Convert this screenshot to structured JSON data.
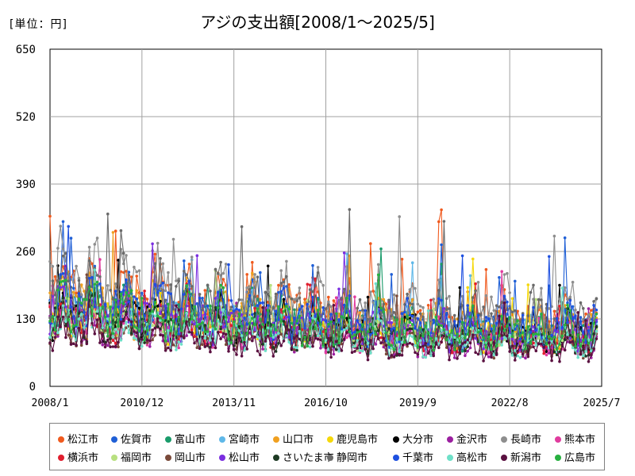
{
  "chart_data": {
    "type": "line",
    "title": "アジの支出額[2008/1～2025/5]",
    "unit_label": "[単位：円]",
    "xlabel": "",
    "ylabel": "",
    "x_range": [
      "2008/1",
      "2025/7"
    ],
    "x_ticks": [
      "2008/1",
      "2010/12",
      "2013/11",
      "2016/10",
      "2019/9",
      "2022/8",
      "2025/7"
    ],
    "ylim": [
      0,
      650
    ],
    "y_ticks": [
      0,
      130,
      260,
      390,
      520,
      650
    ],
    "grid": true,
    "legend_position": "bottom",
    "series": [
      {
        "name": "松江市",
        "color": "#f05a1e"
      },
      {
        "name": "佐賀市",
        "color": "#1f5fd6"
      },
      {
        "name": "富山市",
        "color": "#1a9b6b"
      },
      {
        "name": "宮崎市",
        "color": "#5fb8e8"
      },
      {
        "name": "山口市",
        "color": "#f0a020"
      },
      {
        "name": "鹿児島市",
        "color": "#f5d80a"
      },
      {
        "name": "大分市",
        "color": "#000000"
      },
      {
        "name": "金沢市",
        "color": "#9b1fa0"
      },
      {
        "name": "長崎市",
        "color": "#8e8e8e"
      },
      {
        "name": "熊本市",
        "color": "#e03c9e"
      },
      {
        "name": "横浜市",
        "color": "#e01e2e"
      },
      {
        "name": "福岡市",
        "color": "#b8e080"
      },
      {
        "name": "岡山市",
        "color": "#7a4a3a"
      },
      {
        "name": "松山市",
        "color": "#7a2ee0"
      },
      {
        "name": "さいたま市",
        "color": "#1e3a24"
      },
      {
        "name": "静岡市",
        "color": "#6a6a6a"
      },
      {
        "name": "千葉市",
        "color": "#1e50e0"
      },
      {
        "name": "高松市",
        "color": "#6ee0c8"
      },
      {
        "name": "新潟市",
        "color": "#5a1040"
      },
      {
        "name": "広島市",
        "color": "#28b040"
      }
    ],
    "note": "Monthly values Jan 2008 – May 2025; exact monthly values are generated approximately per series"
  }
}
